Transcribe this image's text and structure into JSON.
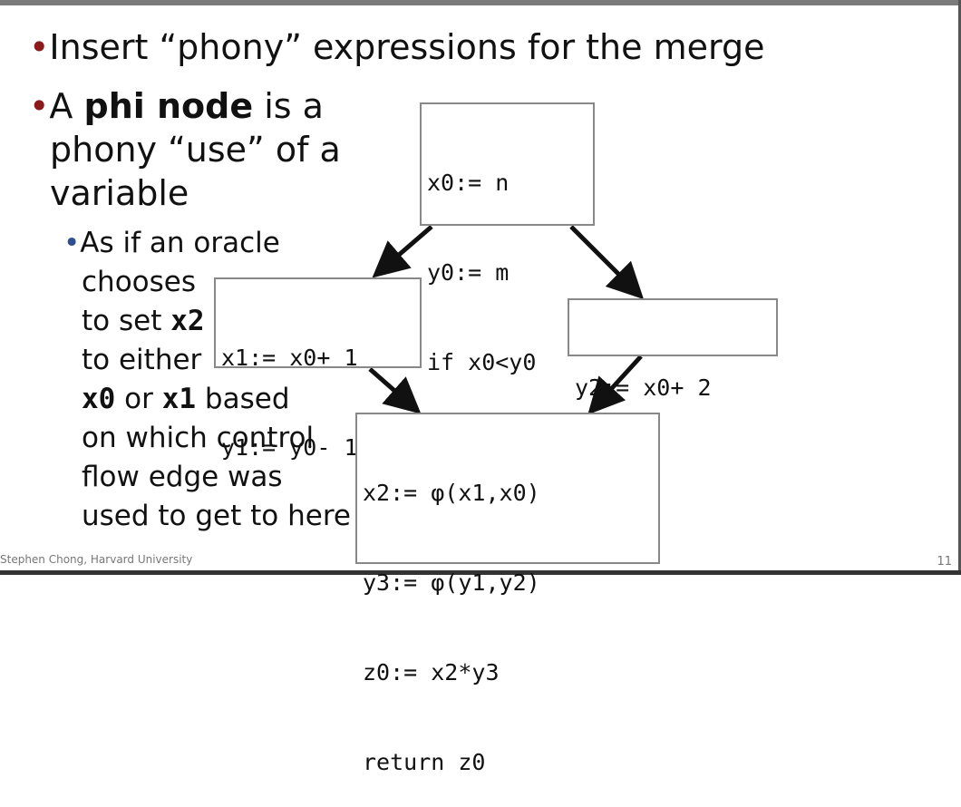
{
  "bullets": {
    "b1": "Insert “phony” expressions for the merge",
    "b2_prefix": "A ",
    "b2_bold": "phi node",
    "b2_l1_suffix": " is a",
    "b2_l2": "phony “use” of a",
    "b2_l3": "variable"
  },
  "sub": {
    "l1": "As if an oracle",
    "l2": "chooses",
    "l3_pre": "to set ",
    "l3_code": "x2",
    "l4": "to either",
    "l5_code1": "x0",
    "l5_mid": " or ",
    "l5_code2": "x1",
    "l5_post": " based",
    "l6": "on which control",
    "l7": "flow edge was",
    "l8": "used to get to here"
  },
  "blocks": {
    "entry": [
      "x0:= n",
      "y0:= m",
      "if x0<y0"
    ],
    "left": [
      "x1:= x0+ 1",
      "y1:= y0- 1"
    ],
    "right": [
      "y2:= x0+ 2"
    ],
    "merge": [
      "x2:= φ(x1,x0)",
      "y3:= φ(y1,y2)",
      "z0:= x2*y3",
      "return z0"
    ]
  },
  "footer": "Stephen Chong, Harvard University",
  "page_number": "11",
  "colors": {
    "bullet": "#8b1a1a",
    "sub_bullet": "#2f4f8f"
  }
}
